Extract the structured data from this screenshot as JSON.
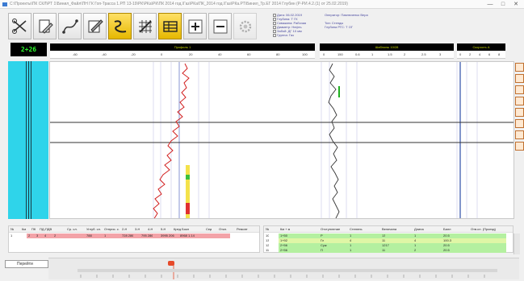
{
  "window": {
    "title": "С:\\Проекты\\ПК СКЛ\\РТ 1\\Бинил_Файл\\ПН ГК Гоп-Трасса 1.РП 13-19\\РК\\РКа\\РК\\ПК 2014 год.\\Газ\\РКа\\ПК_2014 год.\\Газ\\РКа.РТ\\Бинил_Тр.ЕГ 2014 Глубин (Р-РИ.4.2.(1) от 25.02.2019)",
    "min": "—",
    "max": "□",
    "close": "✕"
  },
  "toolbar": {
    "buttons": [
      {
        "name": "tool-cut-button",
        "icon": "scissors-icon",
        "style": "normal"
      },
      {
        "name": "tool-edit-button",
        "icon": "pencil-icon",
        "style": "normal"
      },
      {
        "name": "tool-curve-button",
        "icon": "curve-icon",
        "style": "normal"
      },
      {
        "name": "tool-draw-button",
        "icon": "draw-icon",
        "style": "normal"
      },
      {
        "name": "tool-snake-button",
        "icon": "snake-icon",
        "style": "yellow"
      },
      {
        "name": "tool-grid-button",
        "icon": "grid-icon",
        "style": "normal"
      },
      {
        "name": "tool-table-button",
        "icon": "table-icon",
        "style": "yellow"
      },
      {
        "name": "zoom-in-button",
        "icon": "plus-icon",
        "style": "normal"
      },
      {
        "name": "zoom-out-button",
        "icon": "minus-icon",
        "style": "normal"
      },
      {
        "name": "settings-button",
        "icon": "gear-icon",
        "style": "disabled"
      }
    ]
  },
  "info": {
    "left_labels": [
      "Дата:",
      "Глубина:",
      "Скважина:",
      "Диаметр:",
      "Забой:",
      "Группа:"
    ],
    "left_values": [
      "06.02.2019",
      "Т ГК",
      "Рабочая",
      "Нефть",
      "ДГ 10 мм",
      "Газ"
    ],
    "right_labels": [
      "Оператор:",
      "Тип:",
      "Глубина РГС:"
    ],
    "right_values": [
      "Павлюченко Вера",
      "Стенды",
      "Т ОГ"
    ]
  },
  "depth": {
    "value": "2+26"
  },
  "tracks": {
    "track1": {
      "label": "Профиль 1",
      "ticks": [
        "-60",
        "-40",
        "-20",
        "0",
        "20",
        "40",
        "60",
        "80",
        "100"
      ]
    },
    "track2": {
      "label": "Шаблоны 10/28",
      "ticks": [
        "0",
        "150",
        "0.6",
        "1",
        "1.5",
        "2",
        "2.5",
        "3"
      ]
    },
    "track3": {
      "label": "Скорость А",
      "ticks": [
        "0",
        "2",
        "4",
        "6",
        "8"
      ]
    }
  },
  "sidebar_right": [
    "ruler-icon",
    "zoom-icon",
    "layers-icon",
    "grid-icon",
    "chart-icon",
    "export-icon",
    "print-icon",
    "info-icon"
  ],
  "table_left": {
    "headers": [
      "№",
      "Км",
      "ПК",
      "ПД-ПДВ",
      "Ср. сл.",
      "Углуб. сл.",
      "Отприс. с.",
      "2-Н",
      "3-Н",
      "4-Н",
      "5-Н",
      "Кред Бокл",
      "Сед",
      "Откл.",
      "Ремонт"
    ],
    "row": [
      "1",
      "2",
      "3",
      "4",
      "2",
      "788",
      "1",
      "728 286",
      "795 286",
      "3995 206",
      "8968 1.14",
      "",
      "",
      "",
      ""
    ]
  },
  "table_right": {
    "headers": [
      "№",
      "Км + м",
      "Отступление",
      "Степень",
      "Величина",
      "Длина",
      "Балл",
      "Отв.сл. (Проезд)"
    ],
    "rows": [
      [
        "10",
        "1+50",
        "Р",
        "1",
        "13",
        "1",
        "20.5",
        ""
      ],
      [
        "13",
        "1+92",
        "Гл",
        "4",
        "11",
        "4",
        "100.3",
        ""
      ],
      [
        "12",
        "2+56",
        "Суж",
        "1",
        "1217",
        "1",
        "20.5",
        ""
      ],
      [
        "11",
        "2+56",
        "П",
        "1",
        "11",
        "2",
        "20.5",
        ""
      ]
    ]
  },
  "nav": {
    "label": "Перейти",
    "button": "▸"
  },
  "ruler": {
    "marks": [
      "1",
      "2",
      "3",
      "4",
      "5",
      "6",
      "7",
      "8",
      "9",
      "10",
      "11",
      "12",
      "13",
      "14",
      "15",
      "16",
      "17",
      "18",
      "19",
      "20",
      "21",
      "22",
      "23",
      "24",
      "25"
    ]
  },
  "colors": {
    "accent": "#2cff2c",
    "cyan": "#2fd4ea",
    "pink": "#f3a3a8",
    "green": "#b4f0a0",
    "curve_red": "#d22020"
  }
}
